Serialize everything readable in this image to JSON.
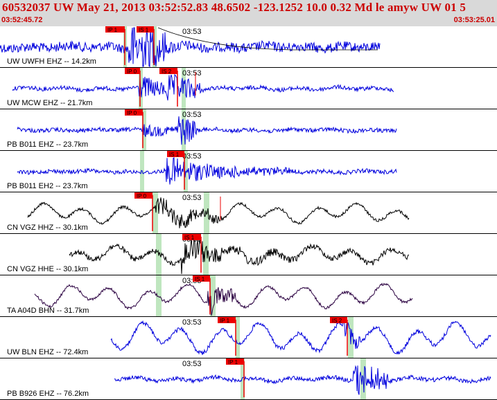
{
  "header": {
    "title": "60532037 UW May 21, 2013 03:52:52.83   48.6502 -123.1252 10.0 0.32 Md le amyw UW 01   5",
    "start_time": "03:52:45.72",
    "end_time": "03:53:25.01"
  },
  "minute_label": "03:53",
  "colors": {
    "header_bg": "#d9d9d9",
    "title_red": "#cc0000",
    "pick_red": "#ee0000",
    "window_green": "#bfe6bf",
    "blue_trace": "#0000dd",
    "dark_trace": "#2a0040"
  },
  "traces": [
    {
      "label": "UW UWFH EHZ -- 14.2km",
      "color": "blue",
      "picks": [
        "IP 1",
        "IS 1"
      ]
    },
    {
      "label": "UW MCW EHZ -- 21.7km",
      "color": "blue",
      "picks": [
        "IP 0",
        "IS 2"
      ]
    },
    {
      "label": "PB B011 EHZ -- 23.7km",
      "color": "blue",
      "picks": [
        "IP 0"
      ]
    },
    {
      "label": "PB B011 EH2 -- 23.7km",
      "color": "blue",
      "picks": [
        "IS 1"
      ]
    },
    {
      "label": "CN VGZ HHZ -- 30.1km",
      "color": "black",
      "picks": [
        "IP 0"
      ]
    },
    {
      "label": "CN VGZ HHE -- 30.1km",
      "color": "black",
      "picks": [
        "IS 1"
      ]
    },
    {
      "label": "TA A04D BHN -- 31.7km",
      "color": "dark",
      "picks": [
        "IS 1"
      ]
    },
    {
      "label": "UW BLN EHZ -- 72.4km",
      "color": "blue",
      "picks": [
        "IP 1",
        "IS 2"
      ]
    },
    {
      "label": "PB B926 EHZ -- 76.2km",
      "color": "blue",
      "picks": [
        "IP 1"
      ]
    }
  ]
}
